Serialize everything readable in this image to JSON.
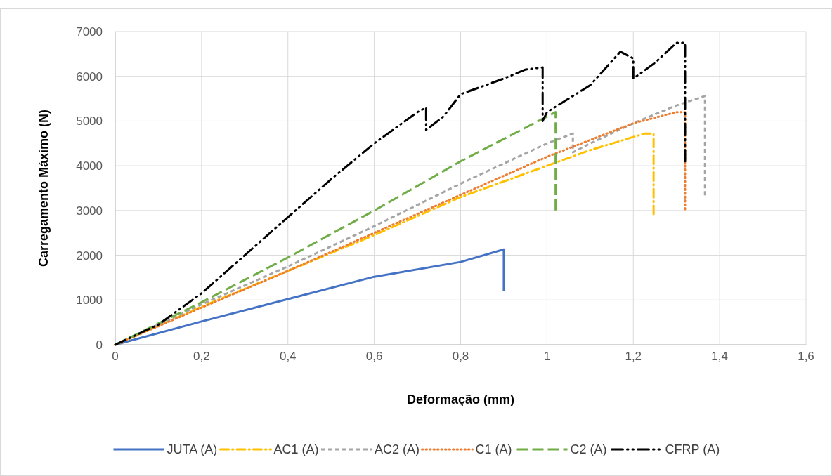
{
  "chart_data": {
    "type": "line",
    "xlabel": "Deformação (mm)",
    "ylabel": "Carregamento Máximo (N)",
    "xlim": [
      0,
      1.6
    ],
    "xticks": [
      {
        "value": 0,
        "label": "0"
      },
      {
        "value": 0.2,
        "label": "0,2"
      },
      {
        "value": 0.4,
        "label": "0,4"
      },
      {
        "value": 0.6,
        "label": "0,6"
      },
      {
        "value": 0.8,
        "label": "0,8"
      },
      {
        "value": 1,
        "label": "1"
      },
      {
        "value": 1.2,
        "label": "1,2"
      },
      {
        "value": 1.4,
        "label": "1,4"
      },
      {
        "value": 1.6,
        "label": "1,6"
      }
    ],
    "ylim": [
      0,
      7000
    ],
    "yticks": [
      0,
      1000,
      2000,
      3000,
      4000,
      5000,
      6000,
      7000
    ],
    "grid": true,
    "legend": "bottom",
    "series": [
      {
        "name": "JUTA (A)",
        "color": "#4472c4",
        "line_style": "solid",
        "x": [
          0,
          0.2,
          0.4,
          0.6,
          0.8,
          0.9,
          0.9
        ],
        "values": [
          0,
          520,
          1020,
          1520,
          1850,
          2130,
          1200
        ]
      },
      {
        "name": "AC1 (A)",
        "color": "#ffc000",
        "line_style": "dashdot",
        "x": [
          0,
          0.2,
          0.4,
          0.6,
          0.8,
          1,
          1.1,
          1.226,
          1.247,
          1.247
        ],
        "values": [
          0,
          850,
          1650,
          2450,
          3300,
          4000,
          4350,
          4720,
          4720,
          2920
        ]
      },
      {
        "name": "AC2 (A)",
        "color": "#a5a5a5",
        "line_style": "dashed",
        "x": [
          0,
          0.2,
          0.4,
          0.6,
          0.8,
          1,
          1.06,
          1.06,
          1.1,
          1.2,
          1.3,
          1.366,
          1.366
        ],
        "values": [
          0,
          900,
          1750,
          2650,
          3600,
          4500,
          4720,
          4300,
          4500,
          4950,
          5350,
          5560,
          3340
        ]
      },
      {
        "name": "C1 (A)",
        "color": "#ed7d31",
        "line_style": "dotted",
        "x": [
          0,
          0.2,
          0.4,
          0.6,
          0.8,
          1,
          1.2,
          1.3,
          1.32,
          1.32
        ],
        "values": [
          0,
          830,
          1650,
          2500,
          3350,
          4200,
          4950,
          5200,
          5200,
          3030
        ]
      },
      {
        "name": "C2 (A)",
        "color": "#70ad47",
        "line_style": "longdash",
        "x": [
          0,
          0.2,
          0.4,
          0.6,
          0.8,
          1,
          1.02,
          1.02
        ],
        "values": [
          0,
          950,
          1950,
          3000,
          4100,
          5100,
          5200,
          3000
        ]
      },
      {
        "name": "CFRP (A)",
        "color": "#000000",
        "line_style": "dashdotdot",
        "x": [
          0,
          0.1,
          0.2,
          0.3,
          0.4,
          0.5,
          0.6,
          0.7,
          0.72,
          0.72,
          0.76,
          0.8,
          0.9,
          0.95,
          0.99,
          0.99,
          1,
          1.1,
          1.17,
          1.2,
          1.2,
          1.25,
          1.3,
          1.32,
          1.32
        ],
        "values": [
          0,
          450,
          1150,
          2000,
          2850,
          3700,
          4500,
          5200,
          5300,
          4800,
          5100,
          5600,
          5950,
          6150,
          6200,
          5000,
          5200,
          5800,
          6550,
          6400,
          5950,
          6300,
          6750,
          6750,
          4100
        ]
      }
    ]
  }
}
